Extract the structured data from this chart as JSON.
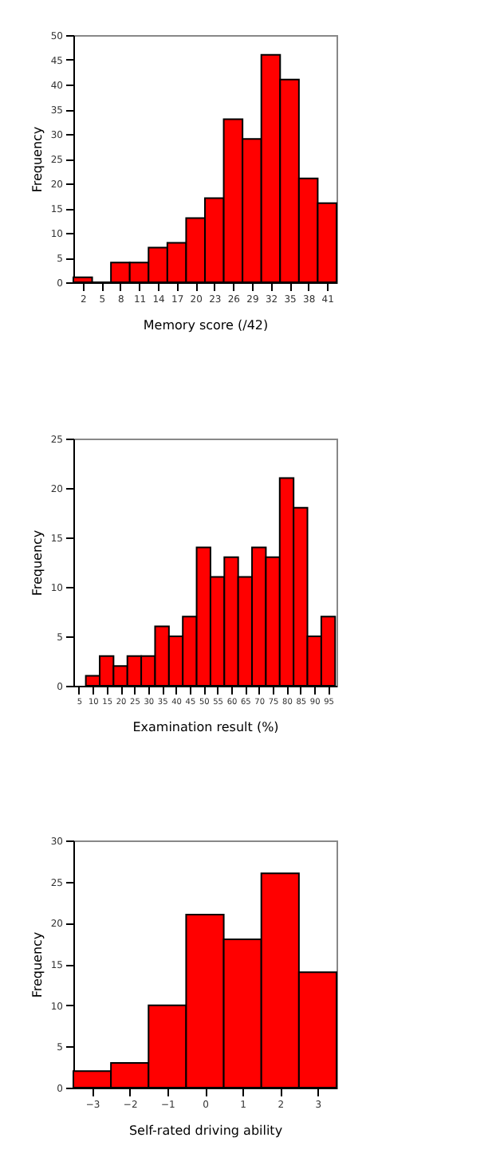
{
  "chart_data": [
    {
      "type": "histogram",
      "xlabel": "Memory score (/42)",
      "ylabel": "Frequency",
      "color": "#ff0000",
      "bins": [
        0.5,
        3.5,
        6.5,
        9.5,
        12.5,
        15.5,
        18.5,
        21.5,
        24.5,
        27.5,
        30.5,
        33.5,
        36.5,
        39.5,
        42.5
      ],
      "values": [
        1,
        0,
        4,
        4,
        7,
        8,
        13,
        17,
        33,
        29,
        46,
        41,
        21,
        16
      ],
      "xlim": [
        0.5,
        42.5
      ],
      "xticks": [
        2,
        5,
        8,
        11,
        14,
        17,
        20,
        23,
        26,
        29,
        32,
        35,
        38,
        41
      ],
      "ylim": [
        0,
        50
      ],
      "yticks": [
        0,
        5,
        10,
        15,
        20,
        25,
        30,
        35,
        40,
        45,
        50
      ],
      "grid": false
    },
    {
      "type": "histogram",
      "xlabel": "Examination result (%)",
      "ylabel": "Frequency",
      "color": "#ff0000",
      "bins": [
        7.5,
        12.5,
        17.5,
        22.5,
        27.5,
        32.5,
        37.5,
        42.5,
        47.5,
        52.5,
        57.5,
        62.5,
        67.5,
        72.5,
        77.5,
        82.5,
        87.5,
        92.5,
        97.5
      ],
      "values": [
        1,
        3,
        2,
        3,
        3,
        6,
        5,
        7,
        14,
        11,
        13,
        11,
        14,
        13,
        21,
        18,
        5,
        7
      ],
      "xlim": [
        3,
        98
      ],
      "xticks": [
        5,
        10,
        15,
        20,
        25,
        30,
        35,
        40,
        45,
        50,
        55,
        60,
        65,
        70,
        75,
        80,
        85,
        90,
        95
      ],
      "ylim": [
        0,
        25
      ],
      "yticks": [
        0,
        5,
        10,
        15,
        20,
        25
      ],
      "grid": false
    },
    {
      "type": "histogram",
      "xlabel": "Self-rated driving ability",
      "ylabel": "Frequency",
      "color": "#ff0000",
      "bins": [
        -3.5,
        -2.5,
        -1.5,
        -0.5,
        0.5,
        1.5,
        2.5,
        3.5
      ],
      "values": [
        2,
        3,
        10,
        21,
        18,
        26,
        14
      ],
      "xlim": [
        -3.5,
        3.5
      ],
      "xticks": [
        -3,
        -2,
        -1,
        0,
        1,
        2,
        3
      ],
      "ylim": [
        0,
        30
      ],
      "yticks": [
        0,
        5,
        10,
        15,
        20,
        25,
        30
      ],
      "grid": false
    }
  ]
}
